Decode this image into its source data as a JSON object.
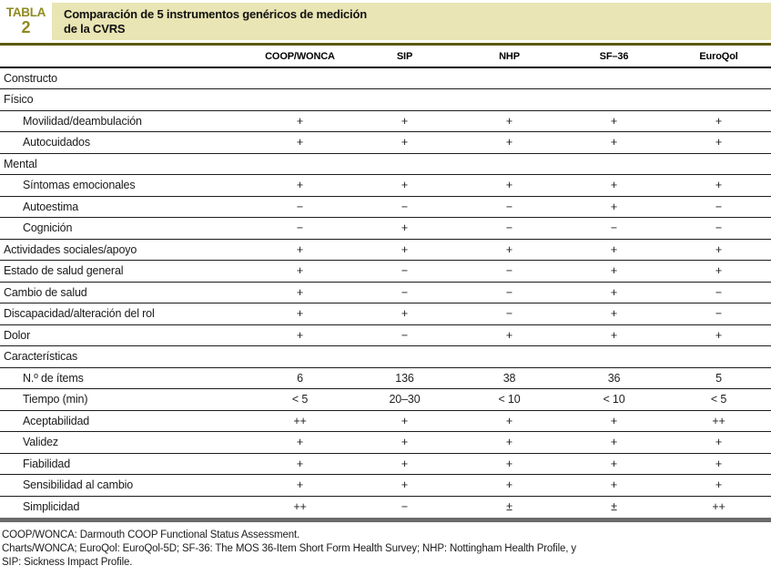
{
  "header": {
    "badge_label": "TABLA",
    "badge_number": "2",
    "title_line1": "Comparación de 5 instrumentos genéricos de medición",
    "title_line2": "de la CVRS"
  },
  "table": {
    "columns": [
      "COOP/WONCA",
      "SIP",
      "NHP",
      "SF–36",
      "EuroQol"
    ],
    "rows": [
      {
        "label": "Constructo",
        "type": "section",
        "values": [
          "",
          "",
          "",
          "",
          ""
        ]
      },
      {
        "label": "Físico",
        "type": "section",
        "values": [
          "",
          "",
          "",
          "",
          ""
        ]
      },
      {
        "label": "Movilidad/deambulación",
        "type": "sub",
        "values": [
          "+",
          "+",
          "+",
          "+",
          "+"
        ]
      },
      {
        "label": "Autocuidados",
        "type": "sub",
        "values": [
          "+",
          "+",
          "+",
          "+",
          "+"
        ]
      },
      {
        "label": "Mental",
        "type": "section",
        "values": [
          "",
          "",
          "",
          "",
          ""
        ]
      },
      {
        "label": "Síntomas emocionales",
        "type": "sub",
        "values": [
          "+",
          "+",
          "+",
          "+",
          "+"
        ]
      },
      {
        "label": "Autoestima",
        "type": "sub",
        "values": [
          "−",
          "−",
          "−",
          "+",
          "−"
        ]
      },
      {
        "label": "Cognición",
        "type": "sub",
        "values": [
          "−",
          "+",
          "−",
          "−",
          "−"
        ]
      },
      {
        "label": "Actividades sociales/apoyo",
        "type": "item",
        "values": [
          "+",
          "+",
          "+",
          "+",
          "+"
        ]
      },
      {
        "label": "Estado de salud general",
        "type": "item",
        "values": [
          "+",
          "−",
          "−",
          "+",
          "+"
        ]
      },
      {
        "label": "Cambio de salud",
        "type": "item",
        "values": [
          "+",
          "−",
          "−",
          "+",
          "−"
        ]
      },
      {
        "label": "Discapacidad/alteración del rol",
        "type": "item",
        "values": [
          "+",
          "+",
          "−",
          "+",
          "−"
        ]
      },
      {
        "label": "Dolor",
        "type": "item",
        "values": [
          "+",
          "−",
          "+",
          "+",
          "+"
        ]
      },
      {
        "label": "Características",
        "type": "section",
        "values": [
          "",
          "",
          "",
          "",
          ""
        ]
      },
      {
        "label": "N.º de ítems",
        "type": "sub",
        "values": [
          "6",
          "136",
          "38",
          "36",
          "5"
        ]
      },
      {
        "label": "Tiempo (min)",
        "type": "sub",
        "values": [
          "< 5",
          "20–30",
          "< 10",
          "< 10",
          "< 5"
        ]
      },
      {
        "label": "Aceptabilidad",
        "type": "sub",
        "values": [
          "++",
          "+",
          "+",
          "+",
          "++"
        ]
      },
      {
        "label": "Validez",
        "type": "sub",
        "values": [
          "+",
          "+",
          "+",
          "+",
          "+"
        ]
      },
      {
        "label": "Fiabilidad",
        "type": "sub",
        "values": [
          "+",
          "+",
          "+",
          "+",
          "+"
        ]
      },
      {
        "label": "Sensibilidad al cambio",
        "type": "sub",
        "values": [
          "+",
          "+",
          "+",
          "+",
          "+"
        ]
      },
      {
        "label": "Simplicidad",
        "type": "sub",
        "values": [
          "++",
          "−",
          "±",
          "±",
          "++"
        ]
      }
    ]
  },
  "footnotes": [
    "COOP/WONCA: Darmouth COOP Functional Status Assessment.",
    "Charts/WONCA; EuroQol: EuroQol-5D; SF-36: The MOS 36-Item Short Form Health Survey; NHP: Nottingham Health Profile, y",
    "SIP: Sickness Impact Profile."
  ],
  "colors": {
    "accent_olive": "#8f8a21",
    "rule_olive": "#5e5a10",
    "title_bar_bg": "#e9e5b4",
    "bottom_bar_gray": "#6b6b6b"
  }
}
